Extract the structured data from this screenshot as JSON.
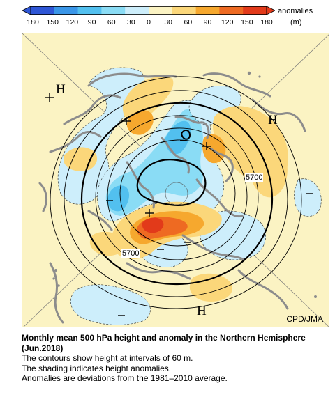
{
  "colorbar": {
    "ticks": [
      "−180",
      "−150",
      "−120",
      "−90",
      "−60",
      "−30",
      "0",
      "30",
      "60",
      "90",
      "120",
      "150",
      "180"
    ],
    "unit_line1": "anomalies",
    "unit_line2": "(m)",
    "colors": [
      "#2e56d6",
      "#3a96e8",
      "#52c0ef",
      "#8adcf5",
      "#cdeefb",
      "#fbf3c3",
      "#fbd77a",
      "#f6a82e",
      "#ee6a22",
      "#e23a1a"
    ]
  },
  "map": {
    "labels": {
      "h_northwest": "H",
      "h_east": "H",
      "h_south": "H",
      "contour_5700_east": "5700",
      "contour_5700_south": "5700",
      "credit": "CPD/JMA"
    },
    "colors": {
      "background": "#fbf3c3",
      "positive_weak": "#fbd77a",
      "positive_mid": "#f6a82e",
      "positive_strong": "#ee6a22",
      "positive_max": "#e23a1a",
      "negative_weak": "#cdeefb",
      "negative_mid": "#8adcf5",
      "negative_strong": "#52c0ef",
      "negative_max": "#3a96e8",
      "coast": "#8c8c8c"
    }
  },
  "caption": {
    "title": "Monthly mean 500 hPa height and anomaly in the Northern Hemisphere (Jun.2018)",
    "line1": "The contours show height at intervals of 60 m.",
    "line2": "The shading indicates height anomalies.",
    "line3": "Anomalies are deviations from the 1981–2010 average."
  }
}
